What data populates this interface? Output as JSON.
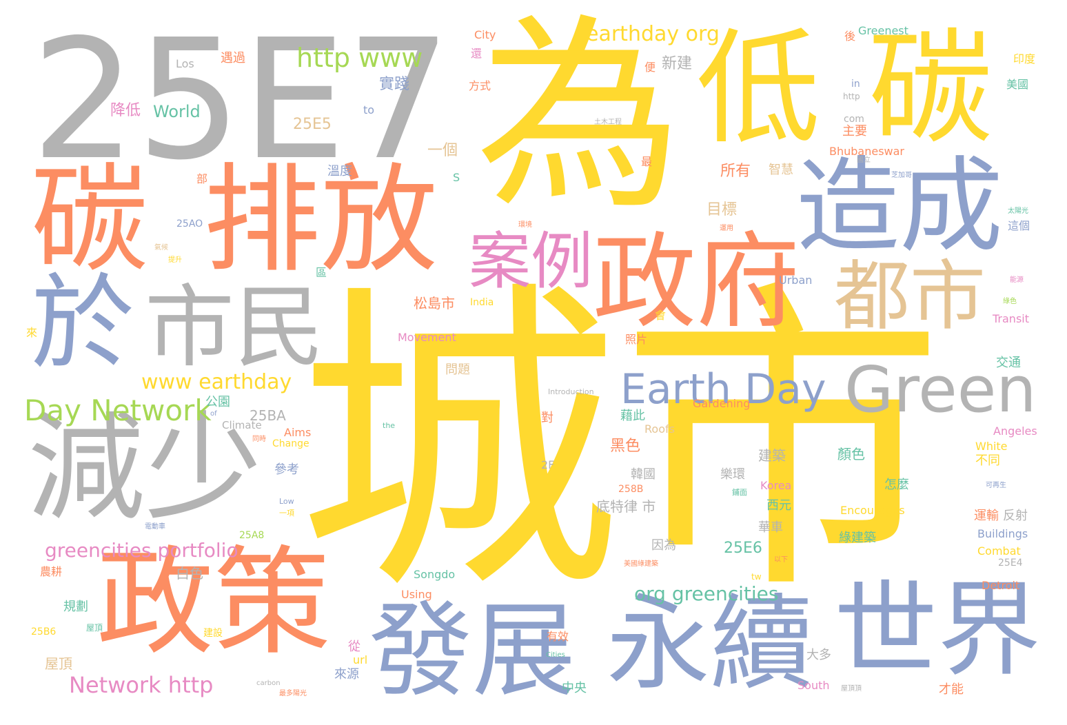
{
  "colors": {
    "yellow": "#FFD92F",
    "orange": "#FC8D62",
    "blue": "#8DA0CB",
    "gray": "#B3B3B3",
    "pink": "#E78AC3",
    "green": "#A6D854",
    "tan": "#E5C494",
    "teal": "#66C2A5"
  },
  "words": [
    {
      "text": "城市",
      "color": "yellow"
    },
    {
      "text": "為",
      "color": "yellow"
    },
    {
      "text": "25E7",
      "color": "gray"
    },
    {
      "text": "低",
      "color": "yellow"
    },
    {
      "text": "碳",
      "color": "yellow"
    },
    {
      "text": "碳",
      "color": "orange"
    },
    {
      "text": "排放",
      "color": "orange"
    },
    {
      "text": "造成",
      "color": "blue"
    },
    {
      "text": "政府",
      "color": "orange"
    },
    {
      "text": "於",
      "color": "blue"
    },
    {
      "text": "市民",
      "color": "gray"
    },
    {
      "text": "都市",
      "color": "tan"
    },
    {
      "text": "案例",
      "color": "pink"
    },
    {
      "text": "減少",
      "color": "gray"
    },
    {
      "text": "政策",
      "color": "orange"
    },
    {
      "text": "發展",
      "color": "blue"
    },
    {
      "text": "永續",
      "color": "blue"
    },
    {
      "text": "世界",
      "color": "blue"
    },
    {
      "text": "Green",
      "color": "gray"
    },
    {
      "text": "Earth Day",
      "color": "blue"
    },
    {
      "text": "Day Network",
      "color": "green"
    },
    {
      "text": "www earthday",
      "color": "yellow"
    },
    {
      "text": "http www",
      "color": "green"
    },
    {
      "text": "earthday org",
      "color": "yellow"
    },
    {
      "text": "greencities portfolio",
      "color": "pink"
    },
    {
      "text": "Network http",
      "color": "pink"
    },
    {
      "text": "org greencities",
      "color": "teal"
    },
    {
      "text": "25E5",
      "color": "tan"
    },
    {
      "text": "World",
      "color": "teal"
    },
    {
      "text": "降低",
      "color": "pink"
    },
    {
      "text": "實踐",
      "color": "blue"
    },
    {
      "text": "新建",
      "color": "gray"
    },
    {
      "text": "一個",
      "color": "tan"
    },
    {
      "text": "所有",
      "color": "orange"
    },
    {
      "text": "目標",
      "color": "tan"
    },
    {
      "text": "松島市",
      "color": "orange"
    },
    {
      "text": "25BA",
      "color": "gray"
    },
    {
      "text": "公園",
      "color": "teal"
    },
    {
      "text": "25E6",
      "color": "teal"
    },
    {
      "text": "白色",
      "color": "gray"
    },
    {
      "text": "屋頂",
      "color": "tan"
    },
    {
      "text": "底特律 市",
      "color": "gray"
    },
    {
      "text": "黑色",
      "color": "orange"
    },
    {
      "text": "建築",
      "color": "gray"
    },
    {
      "text": "韓國",
      "color": "gray"
    },
    {
      "text": "顏色",
      "color": "teal"
    },
    {
      "text": "樂環",
      "color": "gray"
    },
    {
      "text": "參考",
      "color": "blue"
    },
    {
      "text": "Los",
      "color": "gray"
    },
    {
      "text": "遇過",
      "color": "orange"
    },
    {
      "text": "http",
      "color": "gray"
    },
    {
      "text": "to",
      "color": "blue"
    },
    {
      "text": "com",
      "color": "gray"
    },
    {
      "text": "主要",
      "color": "orange"
    },
    {
      "text": "City",
      "color": "orange"
    },
    {
      "text": "Greenest",
      "color": "teal"
    },
    {
      "text": "美國",
      "color": "teal"
    },
    {
      "text": "印度",
      "color": "yellow"
    },
    {
      "text": "Bhubaneswar",
      "color": "orange"
    },
    {
      "text": "智慧",
      "color": "tan"
    },
    {
      "text": "溫度",
      "color": "blue"
    },
    {
      "text": "S",
      "color": "teal"
    },
    {
      "text": "這個",
      "color": "blue"
    },
    {
      "text": "Urban",
      "color": "blue"
    },
    {
      "text": "Transit",
      "color": "pink"
    },
    {
      "text": "Movement",
      "color": "pink"
    },
    {
      "text": "照片",
      "color": "orange"
    },
    {
      "text": "交通",
      "color": "teal"
    },
    {
      "text": "問題",
      "color": "tan"
    },
    {
      "text": "Gardening",
      "color": "orange"
    },
    {
      "text": "藉此",
      "color": "teal"
    },
    {
      "text": "Roofs",
      "color": "tan"
    },
    {
      "text": "Angeles",
      "color": "pink"
    },
    {
      "text": "White",
      "color": "yellow"
    },
    {
      "text": "不同",
      "color": "yellow"
    },
    {
      "text": "Korea",
      "color": "pink"
    },
    {
      "text": "怎麼",
      "color": "teal"
    },
    {
      "text": "西元",
      "color": "teal"
    },
    {
      "text": "Encourages",
      "color": "yellow"
    },
    {
      "text": "運輸",
      "color": "orange"
    },
    {
      "text": "反射",
      "color": "gray"
    },
    {
      "text": "Buildings",
      "color": "blue"
    },
    {
      "text": "綠建築",
      "color": "teal"
    },
    {
      "text": "因為",
      "color": "gray"
    },
    {
      "text": "Combat",
      "color": "yellow"
    },
    {
      "text": "25E4",
      "color": "gray"
    },
    {
      "text": "Detroit",
      "color": "orange"
    },
    {
      "text": "Songdo",
      "color": "teal"
    },
    {
      "text": "Using",
      "color": "orange"
    },
    {
      "text": "Climate",
      "color": "gray"
    },
    {
      "text": "Aims",
      "color": "orange"
    },
    {
      "text": "Change",
      "color": "yellow"
    },
    {
      "text": "25A8",
      "color": "green"
    },
    {
      "text": "25AO",
      "color": "blue"
    },
    {
      "text": "2F",
      "color": "gray"
    },
    {
      "text": "258B",
      "color": "orange"
    },
    {
      "text": "25B6",
      "color": "yellow"
    },
    {
      "text": "規劃",
      "color": "teal"
    },
    {
      "text": "中央",
      "color": "teal"
    },
    {
      "text": "來源",
      "color": "blue"
    },
    {
      "text": "url",
      "color": "yellow"
    },
    {
      "text": "從",
      "color": "pink"
    },
    {
      "text": "South",
      "color": "pink"
    },
    {
      "text": "大多",
      "color": "gray"
    },
    {
      "text": "才能",
      "color": "orange"
    },
    {
      "text": "有效",
      "color": "orange"
    },
    {
      "text": "India",
      "color": "yellow"
    },
    {
      "text": "對",
      "color": "orange"
    },
    {
      "text": "最",
      "color": "orange"
    },
    {
      "text": "部",
      "color": "orange"
    },
    {
      "text": "區",
      "color": "teal"
    },
    {
      "text": "來",
      "color": "yellow"
    },
    {
      "text": "會",
      "color": "yellow"
    },
    {
      "text": "便",
      "color": "orange"
    },
    {
      "text": "後",
      "color": "orange"
    },
    {
      "text": "還",
      "color": "pink"
    },
    {
      "text": "in",
      "color": "blue"
    },
    {
      "text": "方式",
      "color": "orange"
    },
    {
      "text": "農耕",
      "color": "orange"
    },
    {
      "text": "建設",
      "color": "yellow"
    },
    {
      "text": "屋頂",
      "color": "teal"
    },
    {
      "text": "華車",
      "color": "gray"
    },
    {
      "text": "tw",
      "color": "yellow"
    },
    {
      "text": "Low",
      "color": "blue"
    },
    {
      "text": "the",
      "color": "teal"
    },
    {
      "text": "of",
      "color": "blue"
    },
    {
      "text": "Cities",
      "color": "teal"
    },
    {
      "text": "carbon",
      "color": "gray"
    },
    {
      "text": "Introduction",
      "color": "gray"
    },
    {
      "text": "一項",
      "color": "yellow"
    },
    {
      "text": "鋪面",
      "color": "teal"
    },
    {
      "text": "提升",
      "color": "yellow"
    },
    {
      "text": "氣候",
      "color": "tan"
    },
    {
      "text": "運用",
      "color": "orange"
    },
    {
      "text": "能源",
      "color": "pink"
    },
    {
      "text": "太陽光",
      "color": "teal"
    },
    {
      "text": "芝加哥",
      "color": "blue"
    },
    {
      "text": "電動車",
      "color": "blue"
    },
    {
      "text": "國立",
      "color": "gray"
    },
    {
      "text": "土木工程",
      "color": "gray"
    },
    {
      "text": "綠色",
      "color": "green"
    },
    {
      "text": "環境",
      "color": "orange"
    },
    {
      "text": "同時",
      "color": "orange"
    },
    {
      "text": "以下",
      "color": "orange"
    },
    {
      "text": "美國綠建築",
      "color": "orange"
    },
    {
      "text": "最多陽光",
      "color": "orange"
    },
    {
      "text": "屋頂頂",
      "color": "gray"
    },
    {
      "text": "可再生",
      "color": "blue"
    }
  ]
}
